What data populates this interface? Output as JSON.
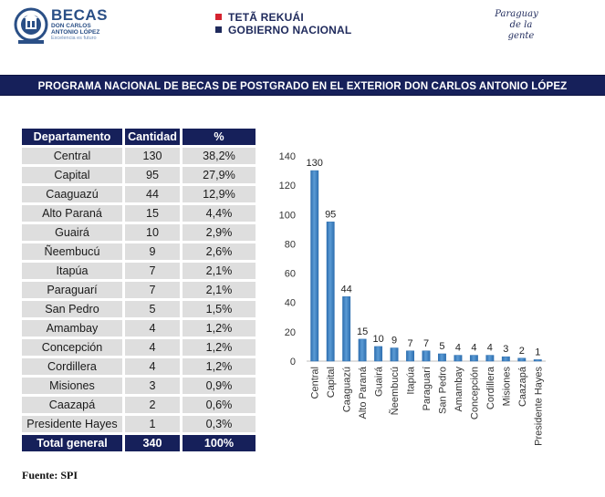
{
  "header": {
    "becas_logo": {
      "title": "BECAS",
      "line1": "DON CARLOS",
      "line2": "ANTONIO LÓPEZ",
      "tagline": "Excelencia es futuro"
    },
    "gov_logo": {
      "line1": "TETÃ REKUÁI",
      "line2": "GOBIERNO NACIONAL",
      "square1_color": "#d5232f",
      "square2_color": "#1f2a5c"
    },
    "paraguay_logo": {
      "line1": "Paraguay",
      "line2": "de la gente"
    }
  },
  "banner": {
    "title": "PROGRAMA NACIONAL DE BECAS DE POSTGRADO EN EL EXTERIOR DON CARLOS ANTONIO LÓPEZ"
  },
  "table": {
    "headers": [
      "Departamento",
      "Cantidad",
      "%"
    ],
    "rows": [
      [
        "Central",
        "130",
        "38,2%"
      ],
      [
        "Capital",
        "95",
        "27,9%"
      ],
      [
        "Caaguazú",
        "44",
        "12,9%"
      ],
      [
        "Alto Paraná",
        "15",
        "4,4%"
      ],
      [
        "Guairá",
        "10",
        "2,9%"
      ],
      [
        "Ñeembucú",
        "9",
        "2,6%"
      ],
      [
        "Itapúa",
        "7",
        "2,1%"
      ],
      [
        "Paraguarí",
        "7",
        "2,1%"
      ],
      [
        "San Pedro",
        "5",
        "1,5%"
      ],
      [
        "Amambay",
        "4",
        "1,2%"
      ],
      [
        "Concepción",
        "4",
        "1,2%"
      ],
      [
        "Cordillera",
        "4",
        "1,2%"
      ],
      [
        "Misiones",
        "3",
        "0,9%"
      ],
      [
        "Caazapá",
        "2",
        "0,6%"
      ],
      [
        "Presidente Hayes",
        "1",
        "0,3%"
      ]
    ],
    "total": [
      "Total general",
      "340",
      "100%"
    ]
  },
  "chart_data": {
    "type": "bar",
    "categories": [
      "Central",
      "Capital",
      "Caaguazú",
      "Alto Paraná",
      "Guairá",
      "Ñeembucú",
      "Itapúa",
      "Paraguarí",
      "San Pedro",
      "Amambay",
      "Concepción",
      "Cordillera",
      "Misiones",
      "Caazapá",
      "Presidente Hayes"
    ],
    "values": [
      130,
      95,
      44,
      15,
      10,
      9,
      7,
      7,
      5,
      4,
      4,
      4,
      3,
      2,
      1
    ],
    "ylim": [
      0,
      140
    ],
    "yticks": [
      0,
      20,
      40,
      60,
      80,
      100,
      120,
      140
    ],
    "grid": false,
    "legend": "none",
    "data_labels": true,
    "bar_color": "#5b9bd5",
    "bar_dark": "#2e6fb0"
  },
  "footer": {
    "source": "Fuente: SPI"
  },
  "colors": {
    "navy": "#16205a",
    "cell": "#dedede"
  }
}
